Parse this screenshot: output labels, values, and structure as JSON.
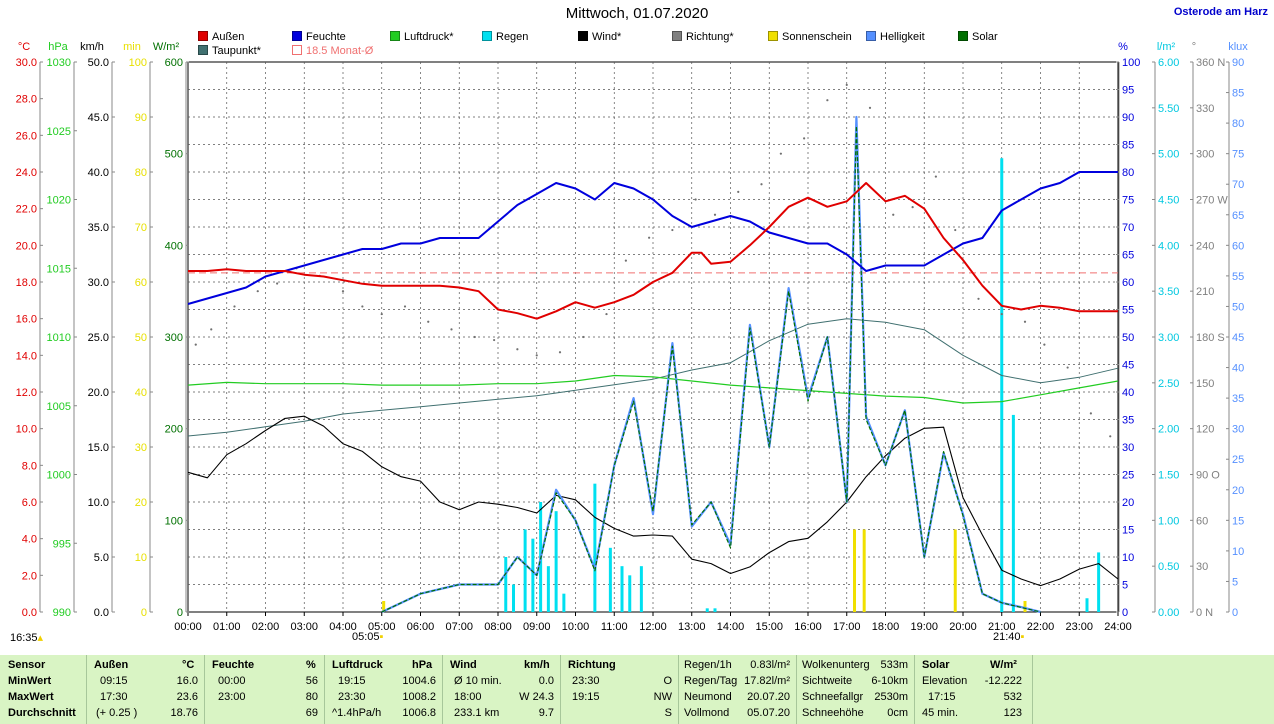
{
  "header": {
    "title": "Mittwoch, 01.07.2020",
    "location": "Osterode am Harz"
  },
  "legend": [
    {
      "label": "Außen",
      "color": "#e00000"
    },
    {
      "label": "Feuchte",
      "color": "#0000dd"
    },
    {
      "label": "Luftdruck*",
      "color": "#22cc22"
    },
    {
      "label": "Regen",
      "color": "#00e0f0"
    },
    {
      "label": "Wind*",
      "color": "#000000"
    },
    {
      "label": "Richtung*",
      "color": "#808080"
    },
    {
      "label": "Sonnenschein",
      "color": "#f0e000"
    },
    {
      "label": "Helligkeit",
      "color": "#5590ff"
    },
    {
      "label": "Solar",
      "color": "#007000"
    },
    {
      "label": "Taupunkt*",
      "color": "#407070"
    },
    {
      "label": "18.5 Monat-Ø",
      "color": "#f07070"
    }
  ],
  "axis_units": {
    "temp": "°C",
    "pressure": "hPa",
    "wind": "km/h",
    "sun": "min",
    "solar": "W/m²",
    "humidity": "%",
    "rain": "l/m²",
    "direction": "°",
    "brightness": "klux"
  },
  "sun_events": {
    "sunrise_prev": "16:35",
    "sunrise": "05:05",
    "sunset": "21:40"
  },
  "chart_data": {
    "type": "line",
    "title": "Mittwoch, 01.07.2020",
    "x_ticks": [
      "00:00",
      "01:00",
      "02:00",
      "03:00",
      "04:00",
      "05:00",
      "06:00",
      "07:00",
      "08:00",
      "09:00",
      "10:00",
      "11:00",
      "12:00",
      "13:00",
      "14:00",
      "15:00",
      "16:00",
      "17:00",
      "18:00",
      "19:00",
      "20:00",
      "21:00",
      "22:00",
      "23:00",
      "24:00"
    ],
    "axes": {
      "temp": {
        "unit": "°C",
        "range": [
          0,
          30
        ],
        "ticks": [
          "0.0",
          "2.0",
          "4.0",
          "6.0",
          "8.0",
          "10.0",
          "12.0",
          "14.0",
          "16.0",
          "18.0",
          "20.0",
          "22.0",
          "24.0",
          "26.0",
          "28.0",
          "30.0"
        ]
      },
      "pressure": {
        "unit": "hPa",
        "range": [
          990,
          1030
        ],
        "ticks": [
          "990",
          "995",
          "1000",
          "1005",
          "1010",
          "1015",
          "1020",
          "1025",
          "1030"
        ]
      },
      "wind": {
        "unit": "km/h",
        "range": [
          0,
          50
        ],
        "ticks": [
          "0.0",
          "5.0",
          "10.0",
          "15.0",
          "20.0",
          "25.0",
          "30.0",
          "35.0",
          "40.0",
          "45.0",
          "50.0"
        ]
      },
      "sun": {
        "unit": "min",
        "range": [
          0,
          100
        ],
        "ticks": [
          "0",
          "10",
          "20",
          "30",
          "40",
          "50",
          "60",
          "70",
          "80",
          "90",
          "100"
        ]
      },
      "solar": {
        "unit": "W/m²",
        "range": [
          0,
          600
        ],
        "ticks": [
          "0",
          "100",
          "200",
          "300",
          "400",
          "500",
          "600"
        ]
      },
      "humidity": {
        "unit": "%",
        "range": [
          0,
          100
        ],
        "ticks": [
          "0",
          "5",
          "10",
          "15",
          "20",
          "25",
          "30",
          "35",
          "40",
          "45",
          "50",
          "55",
          "60",
          "65",
          "70",
          "75",
          "80",
          "85",
          "90",
          "95",
          "100"
        ]
      },
      "rain": {
        "unit": "l/m²",
        "range": [
          0,
          6
        ],
        "ticks": [
          "0.00",
          "0.50",
          "1.00",
          "1.50",
          "2.00",
          "2.50",
          "3.00",
          "3.50",
          "4.00",
          "4.50",
          "5.00",
          "5.50",
          "6.00"
        ]
      },
      "direction": {
        "unit": "°",
        "range": [
          0,
          360
        ],
        "ticks": [
          "0",
          "30",
          "60",
          "90",
          "120",
          "150",
          "180",
          "210",
          "240",
          "270",
          "300",
          "330",
          "360"
        ],
        "tick_suffix": [
          "N",
          "",
          "",
          "O",
          "",
          "",
          "S",
          "",
          "",
          "W",
          "",
          "",
          "N"
        ]
      },
      "brightness": {
        "unit": "klux",
        "range": [
          0,
          90
        ],
        "ticks": [
          "0",
          "5",
          "10",
          "15",
          "20",
          "25",
          "30",
          "35",
          "40",
          "45",
          "50",
          "55",
          "60",
          "65",
          "70",
          "75",
          "80",
          "85",
          "90"
        ]
      }
    },
    "monthly_avg_temp": 18.5,
    "series": [
      {
        "name": "Außen",
        "axis": "temp",
        "color": "#e00000",
        "x": [
          0,
          0.5,
          1,
          1.5,
          2,
          2.5,
          3,
          3.5,
          4,
          4.5,
          5,
          5.5,
          6,
          6.5,
          7,
          7.5,
          8,
          8.5,
          9,
          9.5,
          10,
          10.5,
          11,
          11.5,
          12,
          12.5,
          13,
          13.25,
          13.5,
          14,
          14.5,
          15,
          15.5,
          16,
          16.5,
          17,
          17.5,
          18,
          18.5,
          19,
          19.5,
          20,
          20.5,
          21,
          21.5,
          22,
          22.5,
          23,
          23.5,
          24
        ],
        "y": [
          18.6,
          18.6,
          18.7,
          18.6,
          18.6,
          18.6,
          18.4,
          18.3,
          18.1,
          17.9,
          17.8,
          17.8,
          17.8,
          17.8,
          17.7,
          17.5,
          16.5,
          16.3,
          16.0,
          16.4,
          16.9,
          16.6,
          16.9,
          17.3,
          18.0,
          18.5,
          19.6,
          19.6,
          19.0,
          19.1,
          20.0,
          21.0,
          22.1,
          22.6,
          22.1,
          22.4,
          23.4,
          22.4,
          22.7,
          22.0,
          20.4,
          19.2,
          17.8,
          16.7,
          16.5,
          16.7,
          16.6,
          16.4,
          16.4,
          16.4
        ]
      },
      {
        "name": "Feuchte",
        "axis": "humidity",
        "color": "#0000dd",
        "x": [
          0,
          0.5,
          1,
          1.5,
          2,
          2.5,
          3,
          3.5,
          4,
          4.5,
          5,
          5.5,
          6,
          6.5,
          7,
          7.5,
          8,
          8.5,
          9,
          9.5,
          10,
          10.5,
          11,
          11.5,
          12,
          12.5,
          13,
          13.5,
          14,
          14.5,
          15,
          15.5,
          16,
          16.5,
          17,
          17.5,
          18,
          18.5,
          19,
          19.5,
          20,
          20.5,
          21,
          21.5,
          22,
          22.5,
          23,
          23.5,
          24
        ],
        "y": [
          56,
          57,
          58,
          59,
          61,
          62,
          63,
          64,
          65,
          66,
          66,
          67,
          67,
          68,
          68,
          68,
          71,
          74,
          76,
          78,
          77,
          75,
          78,
          77,
          75,
          72,
          70,
          71,
          72,
          71,
          69,
          68,
          67,
          67,
          65,
          62,
          63,
          63,
          63,
          65,
          67,
          68,
          73,
          75,
          77,
          78,
          80,
          80,
          80
        ]
      },
      {
        "name": "Luftdruck*",
        "axis": "pressure",
        "color": "#22cc22",
        "x": [
          0,
          1,
          2,
          3,
          4,
          5,
          6,
          7,
          8,
          9,
          10,
          11,
          12,
          13,
          14,
          15,
          16,
          17,
          18,
          19,
          20,
          21,
          22,
          23,
          24
        ],
        "y": [
          1006.5,
          1006.7,
          1006.6,
          1006.6,
          1006.6,
          1006.5,
          1006.5,
          1006.5,
          1006.6,
          1006.6,
          1006.8,
          1007.2,
          1007.1,
          1006.8,
          1006.5,
          1006.3,
          1006.1,
          1005.9,
          1005.7,
          1005.6,
          1005.2,
          1005.3,
          1005.8,
          1006.3,
          1006.8
        ]
      },
      {
        "name": "Taupunkt*",
        "axis": "temp",
        "color": "#407070",
        "x": [
          0,
          1,
          2,
          3,
          4,
          5,
          6,
          7,
          8,
          9,
          10,
          11,
          12,
          13,
          14,
          15,
          16,
          17,
          18,
          19,
          20,
          21,
          22,
          23,
          24
        ],
        "y": [
          9.6,
          9.8,
          10.1,
          10.4,
          10.8,
          11.0,
          11.2,
          11.4,
          11.6,
          11.8,
          12.1,
          12.4,
          12.7,
          13.2,
          13.6,
          14.8,
          15.7,
          16.0,
          15.8,
          15.4,
          14.0,
          12.9,
          12.5,
          12.8,
          13.3
        ]
      },
      {
        "name": "Wind*",
        "axis": "wind",
        "color": "#000000",
        "x": [
          0,
          0.5,
          1,
          1.5,
          2,
          2.5,
          3,
          3.5,
          4,
          4.5,
          5,
          5.5,
          6,
          6.5,
          7,
          7.5,
          8,
          8.5,
          9,
          9.5,
          10,
          10.5,
          11,
          11.5,
          12,
          12.5,
          13,
          13.5,
          14,
          14.5,
          15,
          15.5,
          16,
          16.5,
          17,
          17.5,
          18,
          18.5,
          19,
          19.5,
          20,
          20.5,
          21,
          21.5,
          22,
          22.5,
          23,
          23.5,
          24
        ],
        "y": [
          12.7,
          12.2,
          14.3,
          15.3,
          16.5,
          17.6,
          17.8,
          16.9,
          15.3,
          14.6,
          13.2,
          12.3,
          11.9,
          10.0,
          9.3,
          10.0,
          9.8,
          9.5,
          9.0,
          10.6,
          10.2,
          8.6,
          7.6,
          6.9,
          7.0,
          6.9,
          4.8,
          4.4,
          3.5,
          4.1,
          5.4,
          6.4,
          6.7,
          8.2,
          10.0,
          12.3,
          14.2,
          15.8,
          16.7,
          16.8,
          10.4,
          7.0,
          3.8,
          3.0,
          2.4,
          3.0,
          3.9,
          4.4,
          3.0
        ]
      },
      {
        "name": "Solar",
        "axis": "solar",
        "color": "#007000",
        "x": [
          5,
          6,
          7,
          8,
          8.5,
          9,
          9.5,
          10,
          10.5,
          11,
          11.5,
          12,
          12.5,
          13,
          13.5,
          14,
          14.5,
          15,
          15.5,
          16,
          16.5,
          17,
          17.25,
          17.5,
          18,
          18.5,
          19,
          19.5,
          20,
          20.5,
          21,
          21.5,
          22
        ],
        "y": [
          0,
          20,
          30,
          30,
          60,
          40,
          130,
          100,
          45,
          160,
          230,
          110,
          290,
          95,
          120,
          70,
          310,
          180,
          350,
          230,
          300,
          120,
          530,
          210,
          160,
          220,
          60,
          175,
          105,
          20,
          10,
          5,
          0
        ]
      },
      {
        "name": "Helligkeit",
        "axis": "brightness",
        "color": "#5590ff",
        "x": [
          5,
          6,
          7,
          8,
          8.5,
          9,
          9.5,
          10,
          10.5,
          11,
          11.5,
          12,
          12.5,
          13,
          13.5,
          14,
          14.5,
          15,
          15.5,
          16,
          16.5,
          17,
          17.25,
          17.5,
          18,
          18.5,
          19,
          19.5,
          20,
          20.5,
          21,
          21.5,
          22
        ],
        "y": [
          0,
          3,
          4.5,
          4.5,
          9,
          6,
          20,
          15,
          7,
          24,
          35,
          16,
          44,
          14,
          18,
          11,
          47,
          27,
          53,
          35,
          45,
          18,
          81,
          32,
          24,
          33,
          9,
          26,
          16,
          3,
          1.5,
          0.8,
          0
        ]
      },
      {
        "name": "Richtung*",
        "axis": "direction",
        "color": "#808080",
        "style": "dots",
        "x": [
          0.2,
          0.6,
          1.2,
          1.8,
          2.3,
          2.8,
          3.4,
          4.0,
          4.5,
          5.0,
          5.6,
          6.2,
          6.8,
          7.4,
          7.9,
          8.5,
          9.0,
          9.6,
          10.2,
          10.8,
          11.3,
          11.9,
          12.5,
          13.1,
          13.6,
          14.2,
          14.8,
          15.3,
          15.9,
          16.5,
          17.0,
          17.6,
          18.2,
          18.7,
          19.3,
          19.8,
          20.4,
          21.0,
          21.6,
          22.1,
          22.7,
          23.3,
          23.8
        ],
        "y": [
          175,
          185,
          200,
          210,
          215,
          225,
          220,
          210,
          200,
          195,
          200,
          190,
          185,
          180,
          178,
          172,
          168,
          170,
          180,
          195,
          230,
          245,
          250,
          270,
          260,
          275,
          280,
          300,
          310,
          335,
          345,
          330,
          260,
          265,
          285,
          250,
          205,
          195,
          190,
          175,
          160,
          130,
          115
        ]
      },
      {
        "name": "Regen",
        "axis": "rain",
        "color": "#00e0f0",
        "style": "bars",
        "x": [
          8.2,
          8.4,
          8.7,
          8.9,
          9.1,
          9.3,
          9.5,
          9.7,
          10.5,
          10.9,
          11.2,
          11.4,
          11.7,
          13.4,
          13.6,
          21.0,
          21.3,
          23.2,
          23.5
        ],
        "y": [
          0.6,
          0.3,
          0.9,
          0.8,
          1.2,
          0.5,
          1.1,
          0.2,
          1.4,
          0.7,
          0.5,
          0.4,
          0.5,
          0.04,
          0.04,
          4.95,
          2.15,
          0.15,
          0.65
        ]
      },
      {
        "name": "Sonnenschein",
        "axis": "sun",
        "color": "#f0e000",
        "style": "bars",
        "x": [
          5.05,
          17.2,
          17.45,
          19.8,
          21.6
        ],
        "y": [
          2,
          15,
          15,
          15,
          2
        ]
      }
    ]
  },
  "stats_table": {
    "sensor": {
      "header": "Sensor",
      "rows": [
        "MinWert",
        "MaxWert",
        "Durchschnitt"
      ]
    },
    "aussen": {
      "header": "Außen",
      "unit": "°C",
      "times": [
        "09:15",
        "17:30",
        "(+ 0.25 )"
      ],
      "values": [
        "16.0",
        "23.6",
        "18.76"
      ]
    },
    "feuchte": {
      "header": "Feuchte",
      "unit": "%",
      "times": [
        "00:00",
        "23:00",
        ""
      ],
      "values": [
        "56",
        "80",
        "69"
      ]
    },
    "luftdruck": {
      "header": "Luftdruck",
      "unit": "hPa",
      "times": [
        "19:15",
        "23:30",
        "^1.4hPa/h"
      ],
      "values": [
        "1004.6",
        "1008.2",
        "1006.8"
      ]
    },
    "wind": {
      "header": "Wind",
      "unit": "km/h",
      "times": [
        "Ø 10 min.",
        "18:00",
        "233.1 km"
      ],
      "values": [
        "0.0",
        "W 24.3",
        "9.7"
      ]
    },
    "richtung": {
      "header": "Richtung",
      "times": [
        "23:30",
        "19:15",
        ""
      ],
      "values": [
        "O",
        "NW",
        "S"
      ]
    },
    "regen": {
      "labels": [
        "Regen/1h",
        "Regen/Tag",
        "Neumond",
        "Vollmond"
      ],
      "values": [
        "0.83l/m²",
        "17.82l/m²",
        "20.07.20",
        "05.07.20"
      ]
    },
    "wolken": {
      "labels": [
        "Wolkenunterg",
        "Sichtweite",
        "Schneefallgr",
        "Schneehöhe"
      ],
      "values": [
        "533m",
        "6-10km",
        "2530m",
        "0cm"
      ]
    },
    "solar": {
      "header": "Solar",
      "unit": "W/m²",
      "labels": [
        "Elevation",
        "17:15",
        "45 min."
      ],
      "values": [
        "-12.222",
        "532",
        "123"
      ]
    }
  }
}
